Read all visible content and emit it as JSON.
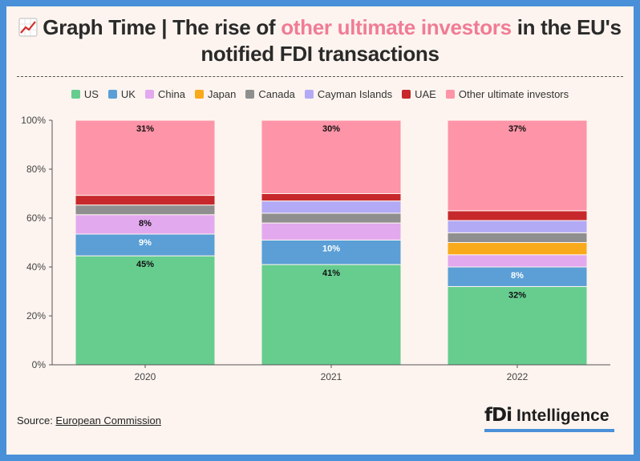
{
  "title": {
    "prefix": "Graph Time | The rise of ",
    "highlight": "other ultimate investors",
    "suffix": " in the EU's notified FDI transactions",
    "emoji": "chart-increasing-icon"
  },
  "source": {
    "label": "Source: ",
    "link": "European Commission"
  },
  "logo": {
    "mark": "fDi",
    "word": "Intelligence"
  },
  "colors": {
    "US": "#66cd8f",
    "UK": "#5b9fd6",
    "China": "#e3a9ee",
    "Japan": "#f9aa1b",
    "Canada": "#8f8f8f",
    "Cayman Islands": "#b3aaf5",
    "UAE": "#c7282b",
    "Other ultimate investors": "#fd94a7",
    "brand": "#4a90d9"
  },
  "chart_data": {
    "type": "bar",
    "stacked": true,
    "categories": [
      "2020",
      "2021",
      "2022"
    ],
    "yticks": [
      "0%",
      "20%",
      "40%",
      "60%",
      "80%",
      "100%"
    ],
    "ylim": [
      0,
      100
    ],
    "legend_position": "top-center",
    "series": [
      {
        "name": "US",
        "values": [
          45,
          41,
          32
        ],
        "labels": [
          "45%",
          "41%",
          "32%"
        ],
        "label_color": "#111"
      },
      {
        "name": "UK",
        "values": [
          9,
          10,
          8
        ],
        "labels": [
          "9%",
          "10%",
          "8%"
        ],
        "label_color": "#fff"
      },
      {
        "name": "China",
        "values": [
          8,
          7,
          5
        ],
        "labels": [
          "8%",
          "",
          ""
        ],
        "label_color": "#111"
      },
      {
        "name": "Japan",
        "values": [
          0,
          0,
          5
        ],
        "labels": [
          "",
          "",
          ""
        ],
        "label_color": "#111"
      },
      {
        "name": "Canada",
        "values": [
          4,
          4,
          4
        ],
        "labels": [
          "",
          "",
          ""
        ],
        "label_color": "#111"
      },
      {
        "name": "Cayman Islands",
        "values": [
          0,
          5,
          5
        ],
        "labels": [
          "",
          "",
          ""
        ],
        "label_color": "#111"
      },
      {
        "name": "UAE",
        "values": [
          4,
          3,
          4
        ],
        "labels": [
          "",
          "",
          ""
        ],
        "label_color": "#111"
      },
      {
        "name": "Other ultimate investors",
        "values": [
          31,
          30,
          37
        ],
        "labels": [
          "31%",
          "30%",
          "37%"
        ],
        "label_color": "#111"
      }
    ]
  }
}
